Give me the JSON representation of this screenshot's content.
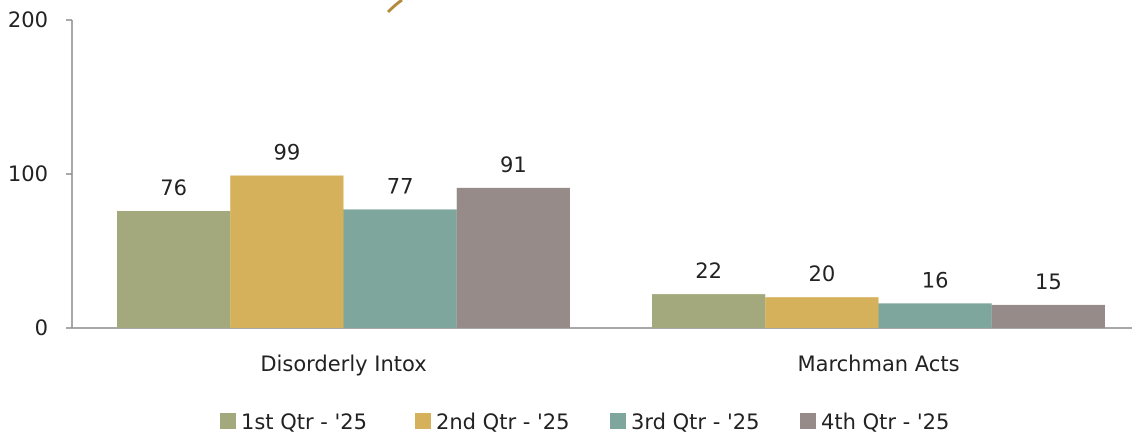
{
  "chart_data": {
    "type": "bar",
    "categories": [
      "Disorderly Intox",
      "Marchman Acts"
    ],
    "series": [
      {
        "name": "1st Qtr - '25",
        "values": [
          76,
          22
        ],
        "color": "#a3a97d"
      },
      {
        "name": "2nd Qtr - '25",
        "values": [
          99,
          20
        ],
        "color": "#d6b15c"
      },
      {
        "name": "3rd Qtr - '25",
        "values": [
          77,
          16
        ],
        "color": "#7fa69c"
      },
      {
        "name": "4th Qtr - '25",
        "values": [
          91,
          15
        ],
        "color": "#968b89"
      }
    ],
    "ylim": [
      0,
      200
    ],
    "yticks": [
      "0",
      "100",
      "200"
    ],
    "grid": false,
    "legend_position": "bottom"
  }
}
